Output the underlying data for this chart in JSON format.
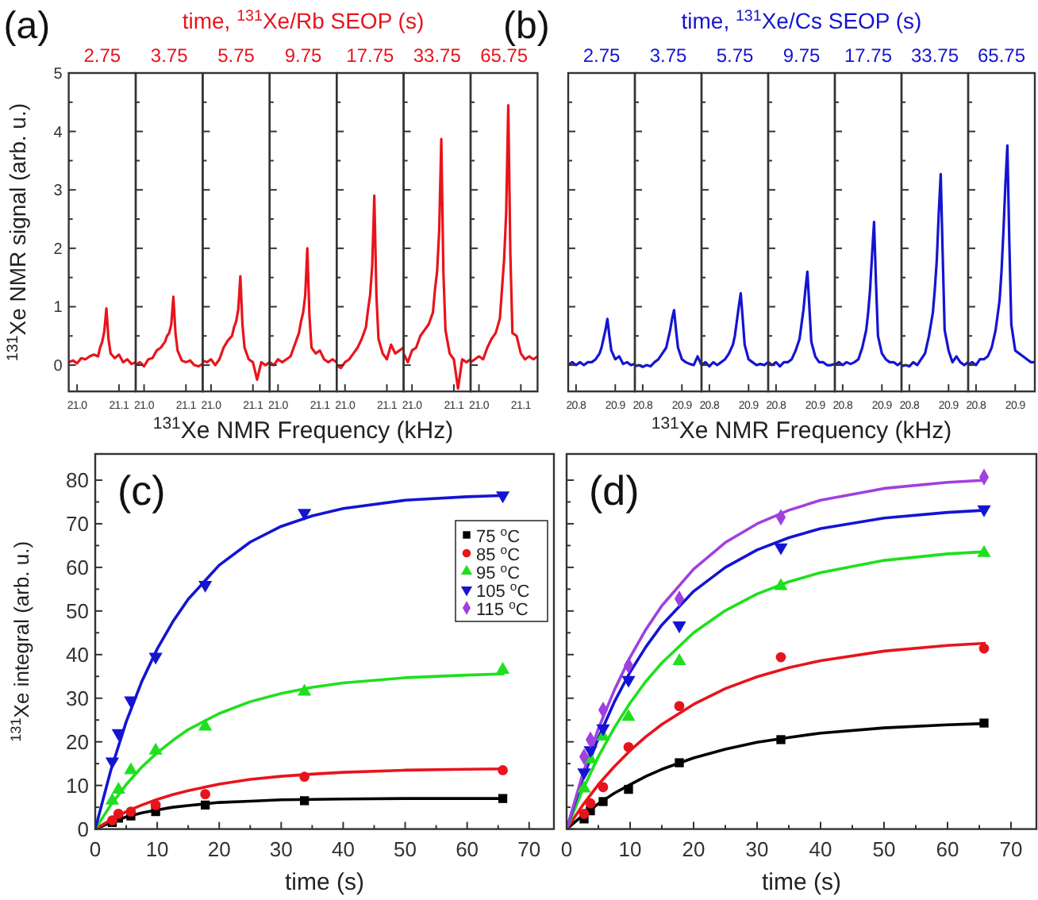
{
  "chart_data": [
    {
      "type": "line",
      "title": "2.75",
      "annotations": [
        "(a)",
        "time, $^{131}$Xe/Rb SEOP (s)"
      ],
      "ylabel": "$^{131}$Xe NMR signal (arb. u.)",
      "color": "#e8141c",
      "xlim": [
        20.98,
        21.14
      ],
      "ylim": [
        -0.45,
        5
      ],
      "xticks": [
        {
          "value": 21,
          "label": "21.0"
        },
        21.1
      ],
      "yticks": [
        0,
        {
          "value": 0.5,
          "label": null
        },
        1,
        {
          "value": 1.5,
          "label": null
        },
        2,
        {
          "value": 2.5,
          "label": null
        },
        3,
        {
          "value": 3.5,
          "label": null
        },
        4,
        {
          "value": 4.5,
          "label": null
        },
        5
      ],
      "x": [
        20.98,
        20.99,
        21.0,
        21.01,
        21.02,
        21.03,
        21.04,
        21.05,
        21.055,
        21.06,
        21.065,
        21.07,
        21.075,
        21.08,
        21.09,
        21.1,
        21.11,
        21.12,
        21.13,
        21.14
      ],
      "values": [
        0.05,
        0.08,
        0.03,
        0.12,
        0.1,
        0.15,
        0.18,
        0.15,
        0.3,
        0.4,
        0.58,
        0.97,
        0.45,
        0.2,
        0.12,
        0.18,
        0.05,
        0.1,
        0.02,
        0.05
      ]
    },
    {
      "type": "line",
      "title": "3.75",
      "tick_labels": "x",
      "color": "#e8141c",
      "xlim": [
        20.98,
        21.14
      ],
      "ylim": [
        -0.45,
        5
      ],
      "xticks": [
        {
          "value": 21,
          "label": "21.0"
        },
        21.1
      ],
      "yticks": [
        0,
        {
          "value": 0.5,
          "label": null
        },
        1,
        {
          "value": 1.5,
          "label": null
        },
        2,
        {
          "value": 2.5,
          "label": null
        },
        3,
        {
          "value": 3.5,
          "label": null
        },
        4,
        {
          "value": 4.5,
          "label": null
        },
        5
      ],
      "x": [
        20.98,
        20.99,
        21.0,
        21.01,
        21.02,
        21.03,
        21.04,
        21.05,
        21.055,
        21.06,
        21.065,
        21.07,
        21.075,
        21.08,
        21.09,
        21.1,
        21.11,
        21.12,
        21.13,
        21.14
      ],
      "values": [
        0.0,
        0.05,
        -0.02,
        0.1,
        0.12,
        0.25,
        0.3,
        0.4,
        0.5,
        0.55,
        0.7,
        1.17,
        0.55,
        0.25,
        0.08,
        0.05,
        0.08,
        0.0,
        -0.02,
        0.02
      ]
    },
    {
      "type": "line",
      "title": "5.75",
      "tick_labels": "x",
      "color": "#e8141c",
      "xlim": [
        20.98,
        21.14
      ],
      "ylim": [
        -0.45,
        5
      ],
      "xticks": [
        {
          "value": 21,
          "label": "21.0"
        },
        21.1
      ],
      "yticks": [
        0,
        {
          "value": 0.5,
          "label": null
        },
        1,
        {
          "value": 1.5,
          "label": null
        },
        2,
        {
          "value": 2.5,
          "label": null
        },
        3,
        {
          "value": 3.5,
          "label": null
        },
        4,
        {
          "value": 4.5,
          "label": null
        },
        5
      ],
      "x": [
        20.98,
        20.99,
        21.0,
        21.01,
        21.02,
        21.03,
        21.04,
        21.05,
        21.055,
        21.06,
        21.065,
        21.07,
        21.075,
        21.08,
        21.09,
        21.1,
        21.11,
        21.12,
        21.13,
        21.14
      ],
      "values": [
        0.08,
        0.05,
        0.1,
        0.0,
        0.1,
        0.3,
        0.42,
        0.5,
        0.65,
        0.75,
        0.95,
        1.52,
        0.7,
        0.3,
        0.1,
        0.05,
        -0.25,
        0.05,
        0.0,
        0.05
      ]
    },
    {
      "type": "line",
      "title": "9.75",
      "tick_labels": "x",
      "xlabel": "$^{131}$Xe NMR Frequency (kHz)",
      "color": "#e8141c",
      "xlim": [
        20.98,
        21.14
      ],
      "ylim": [
        -0.45,
        5
      ],
      "xticks": [
        {
          "value": 21,
          "label": "21.0"
        },
        21.1
      ],
      "yticks": [
        0,
        {
          "value": 0.5,
          "label": null
        },
        1,
        {
          "value": 1.5,
          "label": null
        },
        2,
        {
          "value": 2.5,
          "label": null
        },
        3,
        {
          "value": 3.5,
          "label": null
        },
        4,
        {
          "value": 4.5,
          "label": null
        },
        5
      ],
      "x": [
        20.98,
        20.99,
        21.0,
        21.01,
        21.02,
        21.03,
        21.04,
        21.05,
        21.055,
        21.06,
        21.065,
        21.07,
        21.075,
        21.08,
        21.09,
        21.1,
        21.11,
        21.12,
        21.13,
        21.14
      ],
      "values": [
        0.05,
        0.0,
        0.1,
        0.05,
        0.1,
        0.15,
        0.35,
        0.55,
        0.75,
        0.9,
        1.2,
        2.0,
        0.85,
        0.3,
        0.2,
        0.25,
        0.1,
        0.05,
        0.1,
        0.05
      ]
    },
    {
      "type": "line",
      "title": "17.75",
      "tick_labels": "x",
      "color": "#e8141c",
      "xlim": [
        20.98,
        21.14
      ],
      "ylim": [
        -0.45,
        5
      ],
      "xticks": [
        {
          "value": 21,
          "label": "21.0"
        },
        21.1
      ],
      "yticks": [
        0,
        {
          "value": 0.5,
          "label": null
        },
        1,
        {
          "value": 1.5,
          "label": null
        },
        2,
        {
          "value": 2.5,
          "label": null
        },
        3,
        {
          "value": 3.5,
          "label": null
        },
        4,
        {
          "value": 4.5,
          "label": null
        },
        5
      ],
      "x": [
        20.98,
        20.99,
        21.0,
        21.01,
        21.02,
        21.03,
        21.04,
        21.05,
        21.055,
        21.06,
        21.065,
        21.07,
        21.075,
        21.08,
        21.09,
        21.1,
        21.11,
        21.12,
        21.13,
        21.14
      ],
      "values": [
        0.0,
        -0.05,
        0.05,
        0.1,
        0.2,
        0.3,
        0.45,
        0.65,
        0.95,
        1.2,
        1.7,
        2.9,
        1.2,
        0.45,
        0.2,
        0.1,
        0.35,
        0.2,
        0.25,
        0.3
      ]
    },
    {
      "type": "line",
      "title": "33.75",
      "tick_labels": "x",
      "color": "#e8141c",
      "xlim": [
        20.98,
        21.14
      ],
      "ylim": [
        -0.45,
        5
      ],
      "xticks": [
        {
          "value": 21,
          "label": "21.0"
        },
        21.1
      ],
      "yticks": [
        0,
        {
          "value": 0.5,
          "label": null
        },
        1,
        {
          "value": 1.5,
          "label": null
        },
        2,
        {
          "value": 2.5,
          "label": null
        },
        3,
        {
          "value": 3.5,
          "label": null
        },
        4,
        {
          "value": 4.5,
          "label": null
        },
        5
      ],
      "x": [
        20.98,
        20.99,
        21.0,
        21.01,
        21.02,
        21.03,
        21.04,
        21.05,
        21.055,
        21.06,
        21.065,
        21.07,
        21.075,
        21.08,
        21.09,
        21.1,
        21.11,
        21.12,
        21.13,
        21.14
      ],
      "values": [
        0.2,
        0.05,
        0.25,
        0.3,
        0.5,
        0.6,
        0.7,
        0.9,
        1.3,
        1.6,
        2.3,
        3.87,
        1.6,
        0.6,
        0.2,
        0.1,
        -0.4,
        0.1,
        0.05,
        0.1
      ]
    },
    {
      "type": "line",
      "title": "65.75",
      "tick_labels": "x",
      "color": "#e8141c",
      "xlim": [
        20.98,
        21.14
      ],
      "ylim": [
        -0.45,
        5
      ],
      "xticks": [
        {
          "value": 21,
          "label": "21.0"
        },
        21.1
      ],
      "yticks": [
        0,
        {
          "value": 0.5,
          "label": null
        },
        1,
        {
          "value": 1.5,
          "label": null
        },
        2,
        {
          "value": 2.5,
          "label": null
        },
        3,
        {
          "value": 3.5,
          "label": null
        },
        4,
        {
          "value": 4.5,
          "label": null
        },
        5
      ],
      "x": [
        20.98,
        20.99,
        21.0,
        21.01,
        21.02,
        21.03,
        21.04,
        21.05,
        21.055,
        21.06,
        21.065,
        21.07,
        21.075,
        21.08,
        21.09,
        21.1,
        21.11,
        21.12,
        21.13,
        21.14
      ],
      "values": [
        0.05,
        0.1,
        0.15,
        0.1,
        0.3,
        0.45,
        0.55,
        0.8,
        1.3,
        1.8,
        2.6,
        4.45,
        1.9,
        0.55,
        0.5,
        0.2,
        0.1,
        0.15,
        0.1,
        0.15
      ]
    },
    {
      "type": "line",
      "title": "2.75",
      "annotations": [
        "(b)",
        "time, $^{131}$Xe/Cs SEOP (s)"
      ],
      "tick_labels": "x",
      "color": "#1414d2",
      "xlim": [
        20.78,
        20.95
      ],
      "ylim": [
        -0.45,
        5
      ],
      "xticks": [
        20.8,
        20.9
      ],
      "yticks": [
        0,
        {
          "value": 0.5,
          "label": null
        },
        1,
        {
          "value": 1.5,
          "label": null
        },
        2,
        {
          "value": 2.5,
          "label": null
        },
        3,
        {
          "value": 3.5,
          "label": null
        },
        4,
        {
          "value": 4.5,
          "label": null
        },
        5
      ],
      "x": [
        20.78,
        20.79,
        20.8,
        20.81,
        20.82,
        20.83,
        20.84,
        20.85,
        20.86,
        20.865,
        20.87,
        20.875,
        20.88,
        20.885,
        20.89,
        20.9,
        20.91,
        20.92,
        20.93,
        20.94,
        20.95
      ],
      "values": [
        0.0,
        0.05,
        0.0,
        0.05,
        0.0,
        0.05,
        0.05,
        0.1,
        0.2,
        0.3,
        0.45,
        0.6,
        0.79,
        0.5,
        0.25,
        0.1,
        0.15,
        0.02,
        0.05,
        0.0,
        0.02
      ]
    },
    {
      "type": "line",
      "title": "3.75",
      "tick_labels": "x",
      "color": "#1414d2",
      "xlim": [
        20.78,
        20.95
      ],
      "ylim": [
        -0.45,
        5
      ],
      "xticks": [
        20.8,
        20.9
      ],
      "yticks": [
        0,
        {
          "value": 0.5,
          "label": null
        },
        1,
        {
          "value": 1.5,
          "label": null
        },
        2,
        {
          "value": 2.5,
          "label": null
        },
        3,
        {
          "value": 3.5,
          "label": null
        },
        4,
        {
          "value": 4.5,
          "label": null
        },
        5
      ],
      "x": [
        20.78,
        20.79,
        20.8,
        20.81,
        20.82,
        20.83,
        20.84,
        20.85,
        20.86,
        20.865,
        20.87,
        20.875,
        20.88,
        20.885,
        20.89,
        20.9,
        20.91,
        20.92,
        20.93,
        20.94,
        20.95
      ],
      "values": [
        -0.02,
        0.0,
        -0.03,
        0.0,
        -0.02,
        0.05,
        0.1,
        0.2,
        0.3,
        0.45,
        0.6,
        0.8,
        0.94,
        0.6,
        0.3,
        0.1,
        0.05,
        0.02,
        0.0,
        0.15,
        0.0
      ]
    },
    {
      "type": "line",
      "title": "5.75",
      "tick_labels": "x",
      "color": "#1414d2",
      "xlim": [
        20.78,
        20.95
      ],
      "ylim": [
        -0.45,
        5
      ],
      "xticks": [
        20.8,
        20.9
      ],
      "yticks": [
        0,
        {
          "value": 0.5,
          "label": null
        },
        1,
        {
          "value": 1.5,
          "label": null
        },
        2,
        {
          "value": 2.5,
          "label": null
        },
        3,
        {
          "value": 3.5,
          "label": null
        },
        4,
        {
          "value": 4.5,
          "label": null
        },
        5
      ],
      "x": [
        20.78,
        20.79,
        20.8,
        20.81,
        20.82,
        20.83,
        20.84,
        20.85,
        20.86,
        20.865,
        20.87,
        20.875,
        20.88,
        20.885,
        20.89,
        20.9,
        20.91,
        20.92,
        20.93,
        20.94,
        20.95
      ],
      "values": [
        0.0,
        0.05,
        -0.02,
        0.05,
        0.0,
        0.05,
        0.1,
        0.2,
        0.35,
        0.5,
        0.75,
        1.0,
        1.23,
        0.8,
        0.35,
        0.1,
        0.05,
        0.0,
        0.02,
        0.0,
        0.05
      ]
    },
    {
      "type": "line",
      "title": "9.75",
      "tick_labels": "x",
      "xlabel": "$^{131}$Xe NMR Frequency (kHz)",
      "color": "#1414d2",
      "xlim": [
        20.78,
        20.95
      ],
      "ylim": [
        -0.45,
        5
      ],
      "xticks": [
        20.8,
        20.9
      ],
      "yticks": [
        0,
        {
          "value": 0.5,
          "label": null
        },
        1,
        {
          "value": 1.5,
          "label": null
        },
        2,
        {
          "value": 2.5,
          "label": null
        },
        3,
        {
          "value": 3.5,
          "label": null
        },
        4,
        {
          "value": 4.5,
          "label": null
        },
        5
      ],
      "x": [
        20.78,
        20.79,
        20.8,
        20.81,
        20.82,
        20.83,
        20.84,
        20.85,
        20.86,
        20.865,
        20.87,
        20.875,
        20.88,
        20.885,
        20.89,
        20.9,
        20.91,
        20.92,
        20.93,
        20.94,
        20.95
      ],
      "values": [
        0.05,
        0.0,
        0.05,
        -0.02,
        0.05,
        0.05,
        0.1,
        0.25,
        0.45,
        0.7,
        0.95,
        1.3,
        1.6,
        1.0,
        0.4,
        0.15,
        0.05,
        0.05,
        0.0,
        0.0,
        0.02
      ]
    },
    {
      "type": "line",
      "title": "17.75",
      "tick_labels": "x",
      "color": "#1414d2",
      "xlim": [
        20.78,
        20.95
      ],
      "ylim": [
        -0.45,
        5
      ],
      "xticks": [
        20.8,
        20.9
      ],
      "yticks": [
        0,
        {
          "value": 0.5,
          "label": null
        },
        1,
        {
          "value": 1.5,
          "label": null
        },
        2,
        {
          "value": 2.5,
          "label": null
        },
        3,
        {
          "value": 3.5,
          "label": null
        },
        4,
        {
          "value": 4.5,
          "label": null
        },
        5
      ],
      "x": [
        20.78,
        20.79,
        20.8,
        20.81,
        20.82,
        20.83,
        20.84,
        20.85,
        20.86,
        20.865,
        20.87,
        20.875,
        20.88,
        20.885,
        20.89,
        20.9,
        20.91,
        20.92,
        20.93,
        20.94,
        20.95
      ],
      "values": [
        0.0,
        0.05,
        0.0,
        0.05,
        0.02,
        0.05,
        0.1,
        0.3,
        0.6,
        0.9,
        1.3,
        1.9,
        2.45,
        1.4,
        0.5,
        0.2,
        0.1,
        0.05,
        0.05,
        0.0,
        0.05
      ]
    },
    {
      "type": "line",
      "title": "33.75",
      "tick_labels": "x",
      "color": "#1414d2",
      "xlim": [
        20.78,
        20.95
      ],
      "ylim": [
        -0.45,
        5
      ],
      "xticks": [
        20.8,
        20.9
      ],
      "yticks": [
        0,
        {
          "value": 0.5,
          "label": null
        },
        1,
        {
          "value": 1.5,
          "label": null
        },
        2,
        {
          "value": 2.5,
          "label": null
        },
        3,
        {
          "value": 3.5,
          "label": null
        },
        4,
        {
          "value": 4.5,
          "label": null
        },
        5
      ],
      "x": [
        20.78,
        20.79,
        20.8,
        20.81,
        20.82,
        20.83,
        20.84,
        20.85,
        20.86,
        20.865,
        20.87,
        20.875,
        20.88,
        20.885,
        20.89,
        20.9,
        20.91,
        20.92,
        20.93,
        20.94,
        20.95
      ],
      "values": [
        -0.02,
        0.0,
        -0.02,
        0.05,
        0.0,
        0.1,
        0.2,
        0.5,
        0.9,
        1.3,
        1.8,
        2.6,
        3.27,
        1.9,
        0.6,
        0.25,
        0.05,
        0.15,
        0.05,
        0.0,
        0.05
      ]
    },
    {
      "type": "line",
      "title": "65.75",
      "tick_labels": "x",
      "color": "#1414d2",
      "xlim": [
        20.78,
        20.95
      ],
      "ylim": [
        -0.45,
        5
      ],
      "xticks": [
        20.8,
        20.9
      ],
      "yticks": [
        0,
        {
          "value": 0.5,
          "label": null
        },
        1,
        {
          "value": 1.5,
          "label": null
        },
        2,
        {
          "value": 2.5,
          "label": null
        },
        3,
        {
          "value": 3.5,
          "label": null
        },
        4,
        {
          "value": 4.5,
          "label": null
        },
        5
      ],
      "x": [
        20.78,
        20.79,
        20.8,
        20.81,
        20.82,
        20.83,
        20.84,
        20.85,
        20.86,
        20.865,
        20.87,
        20.875,
        20.88,
        20.885,
        20.89,
        20.9,
        20.91,
        20.92,
        20.93,
        20.94,
        20.95
      ],
      "values": [
        0.0,
        0.05,
        0.0,
        0.1,
        0.1,
        0.15,
        0.3,
        0.6,
        1.1,
        1.6,
        2.3,
        3.1,
        3.76,
        2.1,
        0.7,
        0.25,
        0.2,
        0.15,
        0.1,
        0.05,
        0.05
      ]
    },
    {
      "type": "scatter",
      "annotations": [
        "(c)"
      ],
      "xlabel": "time (s)",
      "ylabel": "$^{131}$Xe integral (arb. u.)",
      "legend": "top right",
      "xlim": [
        0,
        74
      ],
      "ylim": [
        0,
        86
      ],
      "xticks": [
        0,
        {
          "value": 5,
          "label": null
        },
        10,
        {
          "value": 15,
          "label": null
        },
        20,
        {
          "value": 25,
          "label": null
        },
        30,
        {
          "value": 35,
          "label": null
        },
        40,
        {
          "value": 45,
          "label": null
        },
        50,
        {
          "value": 55,
          "label": null
        },
        60,
        {
          "value": 65,
          "label": null
        },
        70
      ],
      "yticks": [
        0,
        {
          "value": 5,
          "label": null
        },
        10,
        {
          "value": 15,
          "label": null
        },
        20,
        {
          "value": 25,
          "label": null
        },
        30,
        {
          "value": 35,
          "label": null
        },
        40,
        {
          "value": 45,
          "label": null
        },
        50,
        {
          "value": 55,
          "label": null
        },
        60,
        {
          "value": 65,
          "label": null
        },
        70,
        {
          "value": 75,
          "label": null
        },
        80
      ],
      "series": [
        {
          "type": "line",
          "color": "#000000",
          "x": [
            0,
            2.5,
            5,
            7.5,
            10,
            12.5,
            15,
            20,
            25,
            30,
            35,
            40,
            50,
            60,
            66
          ],
          "values": [
            0,
            1.5,
            2.8,
            3.7,
            4.4,
            5.0,
            5.4,
            6.1,
            6.4,
            6.7,
            6.8,
            6.9,
            7.0,
            7.0,
            7.0
          ]
        },
        {
          "type": "line",
          "color": "#e8141c",
          "x": [
            0,
            2.5,
            5,
            7.5,
            10,
            12.5,
            15,
            20,
            25,
            30,
            35,
            40,
            50,
            60,
            66
          ],
          "values": [
            0,
            2.1,
            4.0,
            5.5,
            6.8,
            7.9,
            8.8,
            10.3,
            11.4,
            12.1,
            12.6,
            13.0,
            13.5,
            13.7,
            13.8
          ]
        },
        {
          "type": "line",
          "color": "#1ee01e",
          "x": [
            0,
            2.5,
            5,
            7.5,
            10,
            12.5,
            15,
            20,
            25,
            30,
            35,
            40,
            50,
            60,
            66
          ],
          "values": [
            0,
            5.5,
            10.2,
            14.2,
            17.5,
            20.3,
            22.8,
            26.5,
            29.2,
            31.1,
            32.5,
            33.5,
            34.7,
            35.3,
            35.6
          ]
        },
        {
          "type": "line",
          "color": "#1414d2",
          "x": [
            0,
            2.5,
            5,
            7.5,
            10,
            12.5,
            15,
            20,
            25,
            30,
            35,
            40,
            50,
            60,
            66
          ],
          "values": [
            0,
            13.4,
            24.6,
            33.8,
            41.3,
            47.5,
            52.7,
            60.5,
            65.8,
            69.4,
            71.8,
            73.5,
            75.4,
            76.2,
            76.5
          ]
        },
        {
          "name": "75 $^{o}$C",
          "marker": "square",
          "color": "#000000",
          "x": [
            2.75,
            3.75,
            5.75,
            9.75,
            17.75,
            33.75,
            65.75
          ],
          "values": [
            1.5,
            2.5,
            3,
            4,
            5.5,
            6.5,
            7
          ]
        },
        {
          "name": "85 $^{o}$C",
          "marker": "circle",
          "color": "#e8141c",
          "x": [
            2.75,
            3.75,
            5.75,
            9.75,
            17.75,
            33.75,
            65.75
          ],
          "values": [
            2,
            3.5,
            4,
            5.5,
            8,
            12,
            13.5
          ]
        },
        {
          "name": "95 $^{o}$C",
          "marker": "triangle",
          "color": "#1ee01e",
          "x": [
            2.75,
            3.75,
            5.75,
            9.75,
            17.75,
            33.75,
            65.75
          ],
          "values": [
            6.5,
            9,
            13.5,
            18,
            23.5,
            31.5,
            36.5
          ]
        },
        {
          "name": "105 $^{o}$C",
          "marker": "triangle-down",
          "color": "#1414d2",
          "x": [
            2.75,
            3.75,
            5.75,
            9.75,
            17.75,
            33.75,
            65.75
          ],
          "values": [
            15.5,
            22,
            29.5,
            39.5,
            56,
            72.5,
            76.5
          ]
        },
        {
          "name": "115 $^{o}$C",
          "marker": "diamond",
          "color": "#a040e0"
        }
      ]
    },
    {
      "type": "scatter",
      "annotations": [
        "(d)"
      ],
      "xlabel": "time (s)",
      "tick_labels": "x",
      "xlim": [
        0,
        74
      ],
      "ylim": [
        0,
        86
      ],
      "xticks": [
        0,
        {
          "value": 5,
          "label": null
        },
        10,
        {
          "value": 15,
          "label": null
        },
        20,
        {
          "value": 25,
          "label": null
        },
        30,
        {
          "value": 35,
          "label": null
        },
        40,
        {
          "value": 45,
          "label": null
        },
        50,
        {
          "value": 55,
          "label": null
        },
        60,
        {
          "value": 65,
          "label": null
        },
        70
      ],
      "yticks": [
        0,
        {
          "value": 5,
          "label": null
        },
        10,
        {
          "value": 15,
          "label": null
        },
        20,
        {
          "value": 25,
          "label": null
        },
        30,
        {
          "value": 35,
          "label": null
        },
        40,
        {
          "value": 45,
          "label": null
        },
        50,
        {
          "value": 55,
          "label": null
        },
        60,
        {
          "value": 65,
          "label": null
        },
        70,
        {
          "value": 75,
          "label": null
        },
        80
      ],
      "series": [
        {
          "type": "line",
          "color": "#000000",
          "x": [
            0,
            2.5,
            5,
            7.5,
            10,
            12.5,
            15,
            20,
            25,
            30,
            35,
            40,
            50,
            60,
            66
          ],
          "values": [
            0,
            3.1,
            5.8,
            8.2,
            10.2,
            12.1,
            13.7,
            16.3,
            18.3,
            19.9,
            21.0,
            22.0,
            23.2,
            23.9,
            24.2
          ]
        },
        {
          "type": "line",
          "color": "#e8141c",
          "x": [
            0,
            2.5,
            5,
            7.5,
            10,
            12.5,
            15,
            20,
            25,
            30,
            35,
            40,
            50,
            60,
            66
          ],
          "values": [
            0,
            5.4,
            10.2,
            14.3,
            18.0,
            21.2,
            24.0,
            28.6,
            32.2,
            34.9,
            37.0,
            38.6,
            40.8,
            42.1,
            42.6
          ]
        },
        {
          "type": "line",
          "color": "#1ee01e",
          "x": [
            0,
            2.5,
            5,
            7.5,
            10,
            12.5,
            15,
            20,
            25,
            30,
            35,
            40,
            50,
            60,
            66
          ],
          "values": [
            0,
            8.9,
            16.6,
            23.2,
            28.9,
            33.9,
            38.1,
            45.0,
            50.1,
            53.9,
            56.7,
            58.8,
            61.6,
            63.1,
            63.6
          ]
        },
        {
          "type": "line",
          "color": "#1414d2",
          "x": [
            0,
            2.5,
            5,
            7.5,
            10,
            12.5,
            15,
            20,
            25,
            30,
            35,
            40,
            50,
            60,
            66
          ],
          "values": [
            0,
            11.4,
            20.9,
            29.1,
            36.0,
            41.8,
            46.8,
            54.5,
            60.0,
            64.0,
            66.8,
            68.9,
            71.3,
            72.6,
            73.1
          ]
        },
        {
          "type": "line",
          "color": "#a040e0",
          "x": [
            0,
            2.5,
            5,
            7.5,
            10,
            12.5,
            15,
            20,
            25,
            30,
            35,
            40,
            50,
            60,
            66
          ],
          "values": [
            0,
            12.4,
            23.0,
            31.8,
            39.4,
            45.8,
            51.2,
            59.6,
            65.7,
            70.0,
            73.1,
            75.4,
            78.1,
            79.5,
            80.0
          ]
        },
        {
          "marker": "square",
          "color": "#000000",
          "x": [
            2.75,
            3.75,
            5.75,
            9.75,
            17.75,
            33.75,
            65.75
          ],
          "values": [
            2.3,
            4.2,
            6.3,
            9.1,
            15.2,
            20.5,
            24.3
          ]
        },
        {
          "marker": "circle",
          "color": "#e8141c",
          "x": [
            2.75,
            3.75,
            5.75,
            9.75,
            17.75,
            33.75,
            65.75
          ],
          "values": [
            3.5,
            5.9,
            9.6,
            18.8,
            28.2,
            39.4,
            41.4
          ]
        },
        {
          "marker": "triangle",
          "color": "#1ee01e",
          "x": [
            2.75,
            3.75,
            5.75,
            9.75,
            17.75,
            33.75,
            65.75
          ],
          "values": [
            9.3,
            16,
            21.2,
            25.7,
            38.5,
            55.7,
            63.3
          ]
        },
        {
          "marker": "triangle-down",
          "color": "#1414d2",
          "x": [
            2.75,
            3.75,
            5.75,
            9.75,
            17.75,
            33.75,
            65.75
          ],
          "values": [
            13,
            18.1,
            23.1,
            34.2,
            46.7,
            64.6,
            73.3
          ]
        },
        {
          "marker": "diamond",
          "color": "#a040e0",
          "x": [
            2.75,
            3.75,
            5.75,
            9.75,
            17.75,
            33.75,
            65.75
          ],
          "values": [
            16.6,
            20.5,
            27.3,
            37.5,
            52.8,
            71.5,
            80.7
          ]
        }
      ]
    }
  ]
}
